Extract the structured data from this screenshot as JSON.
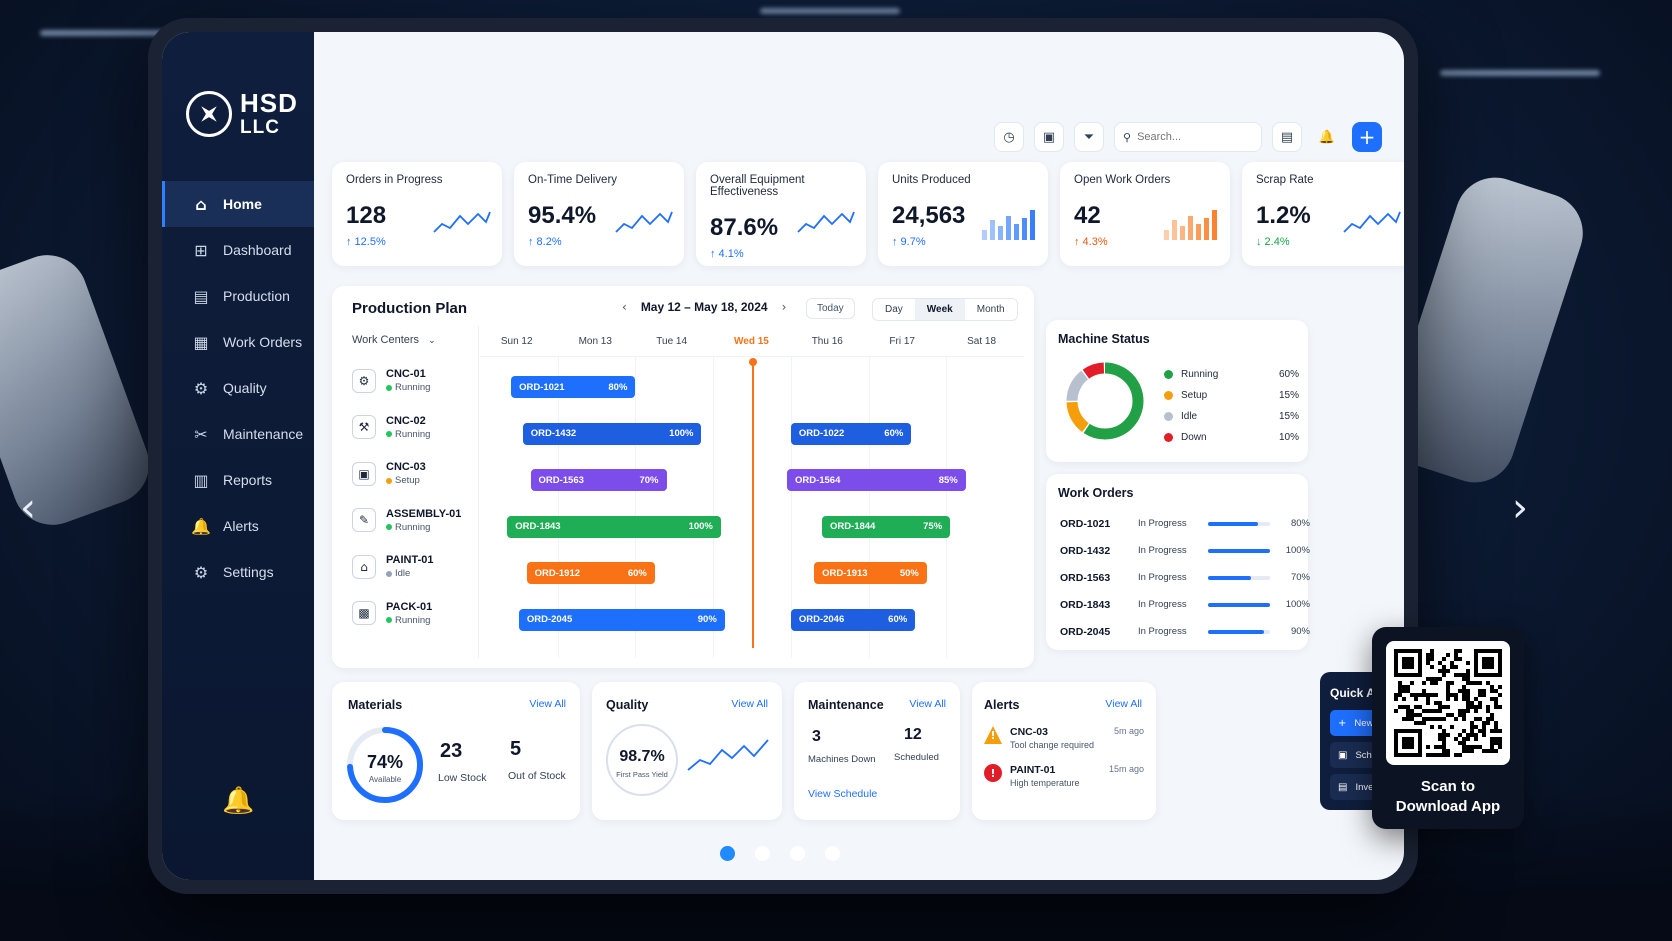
{
  "brand": {
    "line1": "HSD",
    "line2": "LLC"
  },
  "sidebar": {
    "items": [
      {
        "label": "Home",
        "icon": "home-icon",
        "glyph": "⌂",
        "active": true
      },
      {
        "label": "Dashboard",
        "icon": "dashboard-icon",
        "glyph": "⊞",
        "active": false
      },
      {
        "label": "Production",
        "icon": "production-icon",
        "glyph": "▤",
        "active": false
      },
      {
        "label": "Work Orders",
        "icon": "work-orders-icon",
        "glyph": "▦",
        "active": false
      },
      {
        "label": "Quality",
        "icon": "quality-icon",
        "glyph": "⚙",
        "active": false
      },
      {
        "label": "Maintenance",
        "icon": "maintenance-icon",
        "glyph": "✂",
        "active": false
      },
      {
        "label": "Reports",
        "icon": "reports-icon",
        "glyph": "▥",
        "active": false
      },
      {
        "label": "Alerts",
        "icon": "alerts-icon",
        "glyph": "🔔",
        "active": false
      },
      {
        "label": "Settings",
        "icon": "settings-icon",
        "glyph": "⚙",
        "active": false
      }
    ]
  },
  "topbar": {
    "search_placeholder": "Search..."
  },
  "kpis": [
    {
      "title": "Orders in Progress",
      "value": "128",
      "delta": "↑ 12.5%",
      "style": "blue",
      "spark": "line",
      "color": "#1f6fff"
    },
    {
      "title": "On-Time Delivery",
      "value": "95.4%",
      "delta": "↑ 8.2%",
      "style": "blue",
      "spark": "line",
      "color": "#1f6fff"
    },
    {
      "title": "Overall Equipment Effectiveness",
      "value": "87.6%",
      "delta": "↑ 4.1%",
      "style": "blue",
      "spark": "line",
      "color": "#1f6fff"
    },
    {
      "title": "Units Produced",
      "value": "24,563",
      "delta": "↑ 9.7%",
      "style": "blue",
      "spark": "bars",
      "color": "#1f6fff"
    },
    {
      "title": "Open Work Orders",
      "value": "42",
      "delta": "↑ 4.3%",
      "style": "orange",
      "spark": "bars",
      "color": "#f97316"
    },
    {
      "title": "Scrap Rate",
      "value": "1.2%",
      "delta": "↓ 2.4%",
      "style": "green",
      "spark": "line",
      "color": "#1f6fff"
    }
  ],
  "plan": {
    "title": "Production Plan",
    "date_range": "May 12 – May 18, 2024",
    "today_label": "Today",
    "views": [
      "Day",
      "Week",
      "Month"
    ],
    "active_view": "Week",
    "wc_header": "Work Centers",
    "days": [
      "Sun 12",
      "Mon 13",
      "Tue 14",
      "Wed 15",
      "Thu 16",
      "Fri 17",
      "Sat 18"
    ],
    "today_index": 3,
    "centers": [
      {
        "name": "CNC-01",
        "status": "Running",
        "status_color": "#22c55e",
        "glyph": "⚙"
      },
      {
        "name": "CNC-02",
        "status": "Running",
        "status_color": "#22c55e",
        "glyph": "⚒"
      },
      {
        "name": "CNC-03",
        "status": "Setup",
        "status_color": "#f59e0b",
        "glyph": "▣"
      },
      {
        "name": "ASSEMBLY-01",
        "status": "Running",
        "status_color": "#22c55e",
        "glyph": "✎"
      },
      {
        "name": "PAINT-01",
        "status": "Idle",
        "status_color": "#94a3b8",
        "glyph": "⌂"
      },
      {
        "name": "PACK-01",
        "status": "Running",
        "status_color": "#22c55e",
        "glyph": "▩"
      }
    ],
    "orders": [
      {
        "row": 0,
        "id": "ORD-1021",
        "pct": "80%",
        "start": 0.4,
        "end": 2.0,
        "color": "#1f6fff"
      },
      {
        "row": 1,
        "id": "ORD-1432",
        "pct": "100%",
        "start": 0.55,
        "end": 2.85,
        "color": "#1d5fe0"
      },
      {
        "row": 1,
        "id": "ORD-1022",
        "pct": "60%",
        "start": 4.0,
        "end": 5.55,
        "color": "#1d5fe0"
      },
      {
        "row": 2,
        "id": "ORD-1563",
        "pct": "70%",
        "start": 0.65,
        "end": 2.4,
        "color": "#7c4dea"
      },
      {
        "row": 2,
        "id": "ORD-1564",
        "pct": "85%",
        "start": 3.95,
        "end": 6.25,
        "color": "#7c4dea"
      },
      {
        "row": 3,
        "id": "ORD-1843",
        "pct": "100%",
        "start": 0.35,
        "end": 3.1,
        "color": "#1fae55"
      },
      {
        "row": 3,
        "id": "ORD-1844",
        "pct": "75%",
        "start": 4.4,
        "end": 6.05,
        "color": "#1fae55"
      },
      {
        "row": 4,
        "id": "ORD-1912",
        "pct": "60%",
        "start": 0.6,
        "end": 2.25,
        "color": "#f97316"
      },
      {
        "row": 4,
        "id": "ORD-1913",
        "pct": "50%",
        "start": 4.3,
        "end": 5.75,
        "color": "#f97316"
      },
      {
        "row": 5,
        "id": "ORD-2045",
        "pct": "90%",
        "start": 0.5,
        "end": 3.15,
        "color": "#1f6fff"
      },
      {
        "row": 5,
        "id": "ORD-2046",
        "pct": "60%",
        "start": 4.0,
        "end": 5.6,
        "color": "#1d5fe0"
      }
    ]
  },
  "machine_status": {
    "title": "Machine Status",
    "items": [
      {
        "label": "Running",
        "value": "60%",
        "pct": 60,
        "color": "#22a045"
      },
      {
        "label": "Setup",
        "value": "15%",
        "pct": 15,
        "color": "#f59e0b"
      },
      {
        "label": "Idle",
        "value": "15%",
        "pct": 15,
        "color": "#b6c0cf"
      },
      {
        "label": "Down",
        "value": "10%",
        "pct": 10,
        "color": "#e11d2a"
      }
    ]
  },
  "work_orders": {
    "title": "Work Orders",
    "rows": [
      {
        "id": "ORD-1021",
        "status": "In Progress",
        "value": "80%",
        "pct": 80
      },
      {
        "id": "ORD-1432",
        "status": "In Progress",
        "value": "100%",
        "pct": 100
      },
      {
        "id": "ORD-1563",
        "status": "In Progress",
        "value": "70%",
        "pct": 70
      },
      {
        "id": "ORD-1843",
        "status": "In Progress",
        "value": "100%",
        "pct": 100
      },
      {
        "id": "ORD-2045",
        "status": "In Progress",
        "value": "90%",
        "pct": 90
      }
    ]
  },
  "materials": {
    "title": "Materials",
    "view_all": "View All",
    "available_pct": "74%",
    "available_fraction": 0.74,
    "available_label": "Available",
    "low_stock": "23",
    "low_stock_label": "Low Stock",
    "out_of_stock": "5",
    "out_of_stock_label": "Out of Stock"
  },
  "quality": {
    "title": "Quality",
    "view_all": "View All",
    "yield": "98.7%",
    "yield_label": "First Pass Yield"
  },
  "maintenance": {
    "title": "Maintenance",
    "view_all": "View All",
    "down": "3",
    "down_label": "Machines Down",
    "scheduled": "12",
    "scheduled_label": "Scheduled",
    "link": "View Schedule"
  },
  "alerts": {
    "title": "Alerts",
    "view_all": "View All",
    "items": [
      {
        "name": "CNC-03",
        "desc": "Tool change required",
        "time": "5m ago",
        "type": "warning",
        "color": "#f59e0b",
        "glyph": "!"
      },
      {
        "name": "PAINT-01",
        "desc": "High temperature",
        "time": "15m ago",
        "type": "error",
        "color": "#e11d2a",
        "glyph": "!"
      }
    ]
  },
  "quick_actions": {
    "title": "Quick Actions",
    "items": [
      {
        "label": "New Work Order",
        "glyph": "+",
        "primary": true
      },
      {
        "label": "Schedule Maintenance",
        "glyph": "▣",
        "primary": false
      },
      {
        "label": "Inventory Transfer",
        "glyph": "▤",
        "primary": false
      }
    ]
  },
  "qr": {
    "line1": "Scan to",
    "line2": "Download App"
  },
  "carousel": {
    "count": 4,
    "active": 0
  }
}
